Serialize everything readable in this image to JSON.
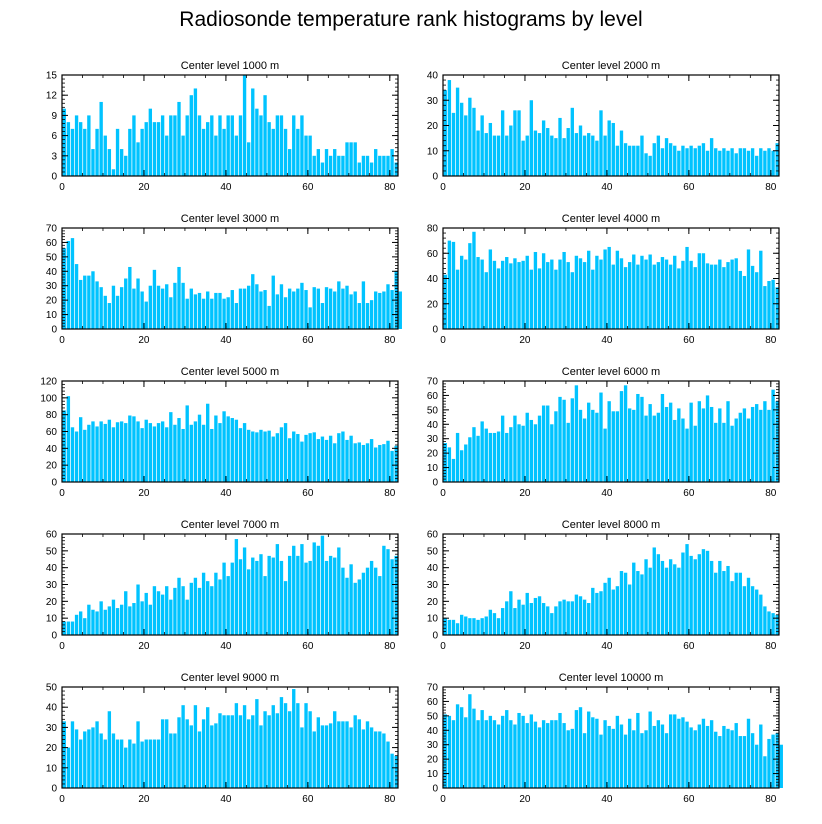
{
  "title": "Radiosonde temperature rank histograms by level",
  "bar_color": "#00c3ff",
  "chart_data": [
    {
      "type": "bar",
      "title": "Center level 1000 m",
      "xlim": [
        0,
        82
      ],
      "ylim": [
        0,
        15
      ],
      "yticks": [
        0,
        3,
        6,
        9,
        12,
        15
      ],
      "xticks": [
        0,
        20,
        40,
        60,
        80
      ],
      "values": [
        10,
        8,
        7,
        9,
        8,
        7,
        9,
        4,
        7,
        11,
        6,
        4,
        1,
        7,
        4,
        3,
        7,
        9,
        5,
        7,
        8,
        10,
        8,
        8,
        9,
        6,
        9,
        9,
        11,
        6,
        9,
        12,
        13,
        9,
        7,
        8,
        9,
        6,
        9,
        7,
        9,
        9,
        6,
        9,
        15,
        5,
        13,
        10,
        9,
        12,
        8,
        7,
        9,
        9,
        7,
        4,
        9,
        7,
        9,
        6,
        6,
        3,
        4,
        2,
        4,
        3,
        4,
        3,
        3,
        5,
        5,
        5,
        2,
        3,
        3,
        2,
        4,
        3,
        3,
        3,
        4,
        2
      ]
    },
    {
      "type": "bar",
      "title": "Center level 2000 m",
      "xlim": [
        0,
        82
      ],
      "ylim": [
        0,
        40
      ],
      "yticks": [
        0,
        10,
        20,
        30,
        40
      ],
      "xticks": [
        0,
        20,
        40,
        60,
        80
      ],
      "values": [
        34,
        38,
        25,
        35,
        29,
        24,
        31,
        27,
        18,
        24,
        17,
        21,
        16,
        16,
        26,
        16,
        20,
        26,
        26,
        14,
        16,
        30,
        18,
        17,
        22,
        19,
        16,
        15,
        23,
        15,
        19,
        27,
        17,
        20,
        16,
        17,
        16,
        14,
        26,
        16,
        22,
        21,
        12,
        18,
        13,
        12,
        12,
        12,
        16,
        9,
        8,
        13,
        16,
        11,
        15,
        13,
        12,
        10,
        12,
        11,
        12,
        11,
        12,
        13,
        10,
        15,
        11,
        10,
        11,
        10,
        11,
        9,
        11,
        11,
        10,
        11,
        8,
        11,
        10,
        11,
        10,
        13
      ]
    },
    {
      "type": "bar",
      "title": "Center level 3000 m",
      "xlim": [
        0,
        82
      ],
      "ylim": [
        0,
        70
      ],
      "yticks": [
        0,
        10,
        20,
        30,
        40,
        50,
        60,
        70
      ],
      "xticks": [
        0,
        20,
        40,
        60,
        80
      ],
      "values": [
        56,
        61,
        63,
        45,
        34,
        37,
        37,
        40,
        33,
        29,
        23,
        18,
        30,
        23,
        29,
        35,
        43,
        28,
        35,
        26,
        19,
        30,
        41,
        30,
        28,
        31,
        22,
        32,
        43,
        32,
        21,
        28,
        24,
        25,
        21,
        26,
        21,
        25,
        25,
        21,
        22,
        27,
        18,
        28,
        28,
        30,
        38,
        31,
        26,
        27,
        16,
        37,
        24,
        31,
        22,
        28,
        26,
        28,
        32,
        27,
        15,
        29,
        28,
        18,
        29,
        28,
        26,
        33,
        28,
        30,
        24,
        26,
        18,
        33,
        18,
        20,
        26,
        25,
        26,
        31,
        27,
        40,
        26
      ]
    },
    {
      "type": "bar",
      "title": "Center level 4000 m",
      "xlim": [
        0,
        82
      ],
      "ylim": [
        0,
        80
      ],
      "yticks": [
        0,
        20,
        40,
        60,
        80
      ],
      "xticks": [
        0,
        20,
        40,
        60,
        80
      ],
      "values": [
        43,
        70,
        69,
        47,
        58,
        55,
        68,
        77,
        57,
        55,
        45,
        63,
        54,
        48,
        54,
        57,
        52,
        56,
        53,
        54,
        58,
        47,
        61,
        48,
        60,
        53,
        55,
        47,
        55,
        61,
        53,
        45,
        58,
        56,
        53,
        62,
        47,
        58,
        55,
        63,
        65,
        51,
        62,
        56,
        49,
        53,
        59,
        51,
        58,
        55,
        59,
        51,
        53,
        57,
        55,
        51,
        58,
        48,
        54,
        65,
        54,
        49,
        60,
        60,
        52,
        51,
        51,
        55,
        49,
        53,
        55,
        56,
        46,
        42,
        63,
        50,
        45,
        62,
        34,
        38,
        39,
        33
      ]
    },
    {
      "type": "bar",
      "title": "Center level 5000 m",
      "xlim": [
        0,
        82
      ],
      "ylim": [
        0,
        120
      ],
      "yticks": [
        0,
        20,
        40,
        60,
        80,
        100,
        120
      ],
      "xticks": [
        0,
        20,
        40,
        60,
        80
      ],
      "values": [
        85,
        102,
        65,
        60,
        77,
        62,
        68,
        72,
        66,
        72,
        69,
        74,
        65,
        71,
        72,
        70,
        79,
        78,
        72,
        64,
        74,
        70,
        66,
        70,
        72,
        65,
        83,
        68,
        76,
        63,
        91,
        68,
        72,
        80,
        68,
        93,
        63,
        79,
        70,
        84,
        78,
        76,
        74,
        64,
        70,
        62,
        60,
        59,
        62,
        60,
        61,
        54,
        58,
        65,
        70,
        52,
        60,
        57,
        48,
        56,
        58,
        59,
        51,
        54,
        50,
        55,
        46,
        58,
        60,
        50,
        55,
        46,
        47,
        44,
        46,
        51,
        41,
        44,
        45,
        49,
        37,
        43
      ]
    },
    {
      "type": "bar",
      "title": "Center level 6000 m",
      "xlim": [
        0,
        82
      ],
      "ylim": [
        0,
        70
      ],
      "yticks": [
        0,
        10,
        20,
        30,
        40,
        50,
        60,
        70
      ],
      "xticks": [
        0,
        20,
        40,
        60,
        80
      ],
      "values": [
        27,
        24,
        16,
        34,
        22,
        26,
        31,
        38,
        32,
        42,
        37,
        34,
        34,
        35,
        46,
        34,
        38,
        46,
        40,
        39,
        48,
        43,
        40,
        46,
        53,
        53,
        40,
        49,
        59,
        57,
        41,
        58,
        67,
        50,
        44,
        55,
        50,
        48,
        62,
        37,
        56,
        49,
        49,
        63,
        67,
        51,
        50,
        61,
        59,
        46,
        54,
        46,
        48,
        61,
        52,
        55,
        43,
        51,
        44,
        37,
        55,
        39,
        56,
        51,
        60,
        52,
        41,
        51,
        41,
        56,
        39,
        44,
        48,
        51,
        44,
        52,
        54,
        50,
        56,
        50,
        64,
        56
      ]
    },
    {
      "type": "bar",
      "title": "Center level 7000 m",
      "xlim": [
        0,
        82
      ],
      "ylim": [
        0,
        60
      ],
      "yticks": [
        0,
        10,
        20,
        30,
        40,
        50,
        60
      ],
      "xticks": [
        0,
        20,
        40,
        60,
        80
      ],
      "values": [
        8,
        8,
        8,
        12,
        14,
        10,
        18,
        15,
        14,
        20,
        15,
        17,
        21,
        16,
        18,
        26,
        17,
        19,
        30,
        20,
        25,
        18,
        29,
        26,
        24,
        29,
        21,
        28,
        34,
        29,
        21,
        31,
        34,
        28,
        37,
        32,
        29,
        37,
        33,
        43,
        35,
        43,
        57,
        45,
        52,
        39,
        46,
        44,
        48,
        35,
        47,
        46,
        54,
        44,
        32,
        47,
        53,
        47,
        54,
        43,
        44,
        55,
        53,
        59,
        44,
        47,
        46,
        52,
        40,
        34,
        42,
        31,
        33,
        37,
        40,
        44,
        40,
        35,
        53,
        51,
        45,
        47
      ]
    },
    {
      "type": "bar",
      "title": "Center level 8000 m",
      "xlim": [
        0,
        82
      ],
      "ylim": [
        0,
        60
      ],
      "yticks": [
        0,
        10,
        20,
        30,
        40,
        50,
        60
      ],
      "xticks": [
        0,
        20,
        40,
        60,
        80
      ],
      "values": [
        10,
        9,
        9,
        7,
        12,
        11,
        10,
        10,
        9,
        10,
        11,
        15,
        13,
        10,
        16,
        20,
        26,
        16,
        21,
        18,
        25,
        19,
        22,
        23,
        19,
        17,
        13,
        17,
        20,
        21,
        20,
        20,
        24,
        23,
        21,
        19,
        28,
        25,
        26,
        31,
        34,
        27,
        29,
        38,
        37,
        30,
        43,
        38,
        36,
        45,
        40,
        52,
        48,
        44,
        40,
        45,
        42,
        40,
        49,
        54,
        47,
        45,
        48,
        51,
        50,
        44,
        37,
        44,
        38,
        41,
        32,
        37,
        37,
        29,
        34,
        29,
        27,
        24,
        17,
        14,
        13,
        12
      ]
    },
    {
      "type": "bar",
      "title": "Center level 9000 m",
      "xlim": [
        0,
        82
      ],
      "ylim": [
        0,
        50
      ],
      "yticks": [
        0,
        10,
        20,
        30,
        40,
        50
      ],
      "xticks": [
        0,
        20,
        40,
        60,
        80
      ],
      "values": [
        33,
        20,
        33,
        29,
        24,
        28,
        29,
        30,
        33,
        27,
        24,
        38,
        27,
        24,
        24,
        20,
        24,
        22,
        33,
        23,
        24,
        24,
        24,
        24,
        34,
        34,
        27,
        27,
        35,
        41,
        34,
        31,
        41,
        28,
        34,
        40,
        31,
        32,
        37,
        36,
        36,
        36,
        42,
        36,
        41,
        34,
        36,
        44,
        31,
        38,
        36,
        41,
        37,
        45,
        42,
        38,
        49,
        42,
        30,
        42,
        38,
        28,
        35,
        31,
        31,
        32,
        38,
        33,
        33,
        33,
        30,
        36,
        34,
        29,
        33,
        30,
        28,
        28,
        27,
        23,
        17,
        16
      ]
    },
    {
      "type": "bar",
      "title": "Center level 10000 m",
      "xlim": [
        0,
        82
      ],
      "ylim": [
        0,
        70
      ],
      "yticks": [
        0,
        10,
        20,
        30,
        40,
        50,
        60,
        70
      ],
      "xticks": [
        0,
        20,
        40,
        60,
        80
      ],
      "values": [
        51,
        50,
        47,
        58,
        56,
        49,
        65,
        55,
        47,
        54,
        47,
        50,
        47,
        44,
        50,
        54,
        47,
        44,
        52,
        50,
        45,
        51,
        46,
        42,
        47,
        45,
        47,
        47,
        52,
        45,
        40,
        41,
        54,
        56,
        38,
        53,
        49,
        48,
        37,
        47,
        43,
        41,
        50,
        44,
        37,
        48,
        40,
        52,
        38,
        40,
        53,
        43,
        47,
        44,
        38,
        51,
        51,
        48,
        49,
        46,
        42,
        40,
        44,
        48,
        43,
        47,
        39,
        36,
        43,
        41,
        40,
        45,
        36,
        36,
        48,
        38,
        30,
        44,
        22,
        34,
        37,
        38,
        30
      ]
    }
  ]
}
